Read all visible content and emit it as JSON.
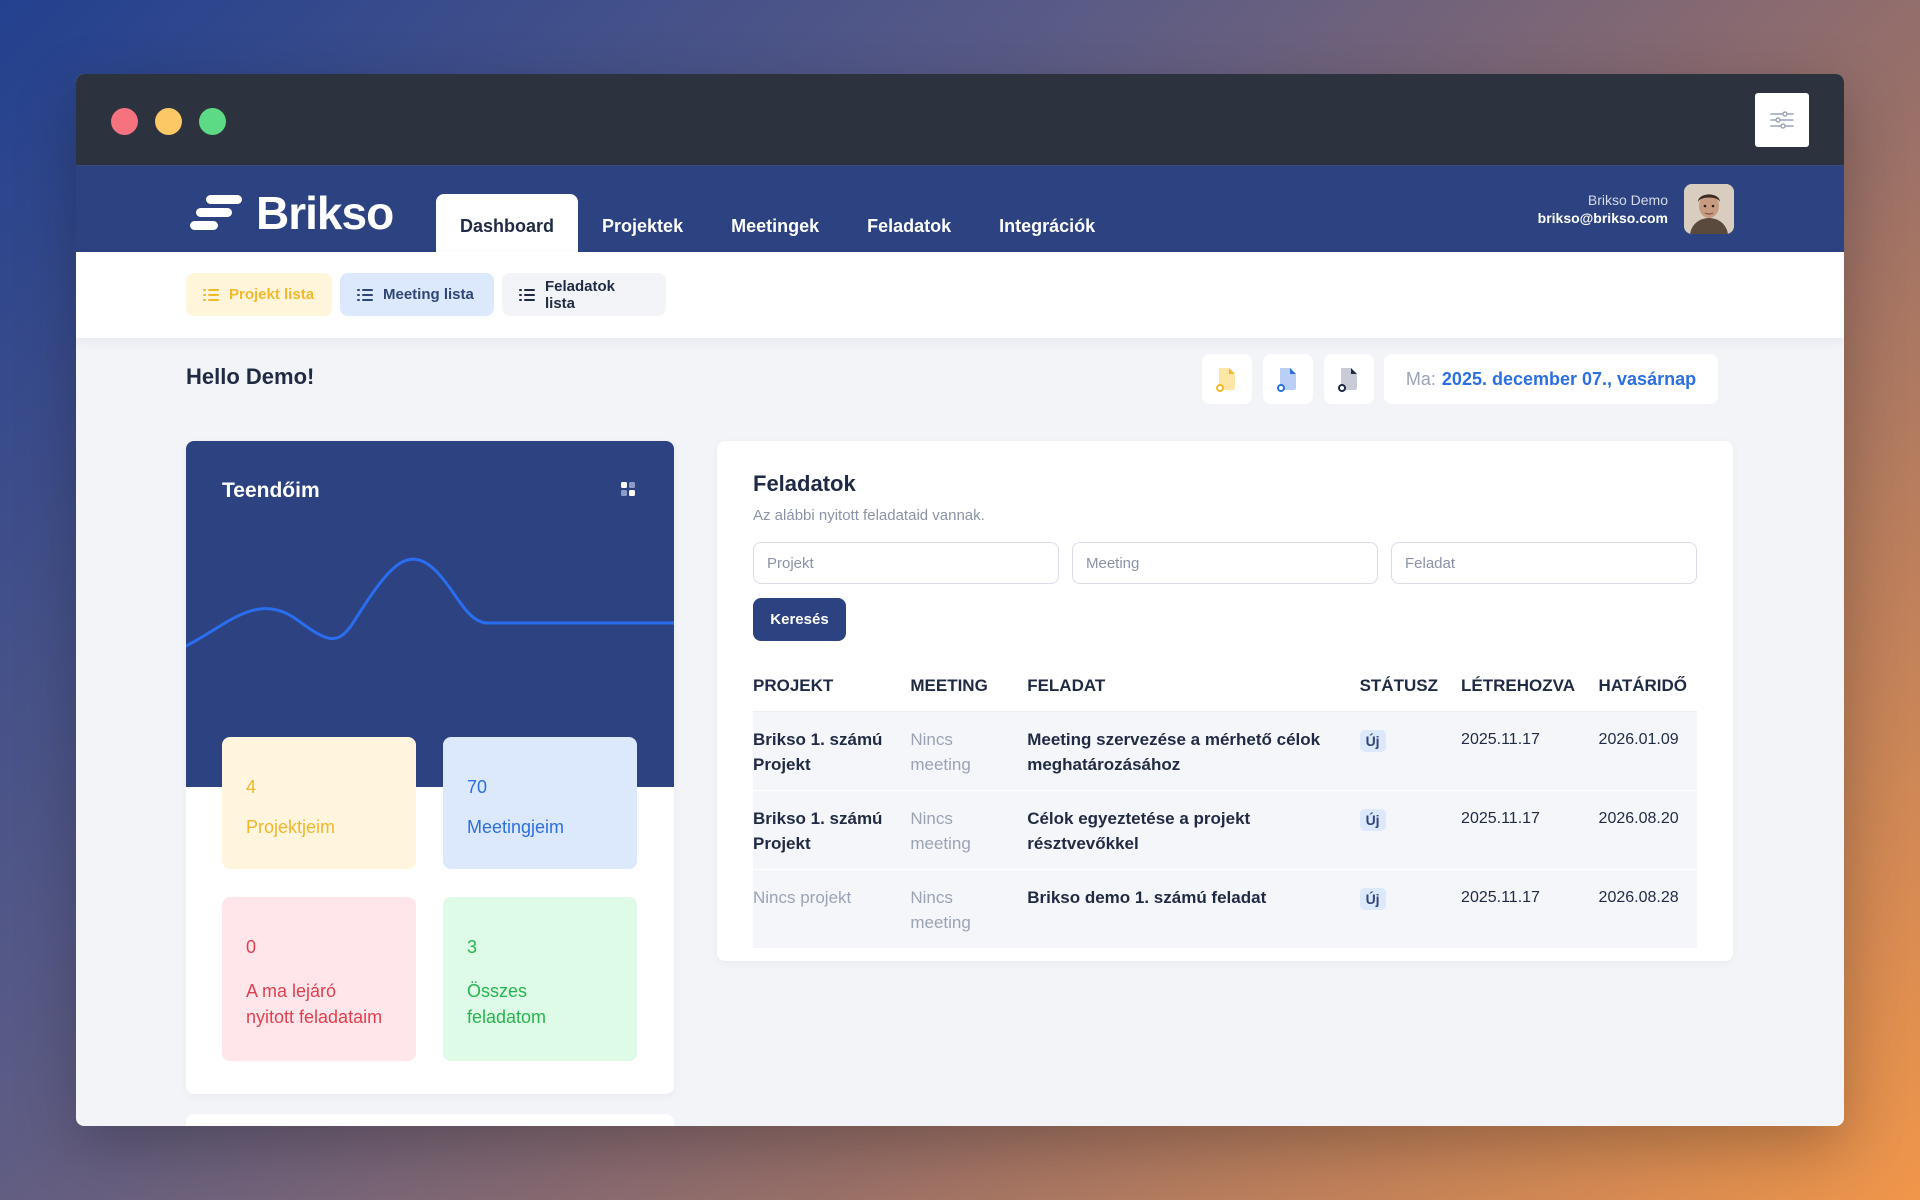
{
  "colors": {
    "navbar": "#2c4281",
    "accent_blue": "#2b6fe0",
    "yellow": "#f2b92d",
    "red": "#e23f4e",
    "green": "#27b44f"
  },
  "window": {
    "controls": [
      "close",
      "minimize",
      "maximize"
    ],
    "settings_icon": "sliders-icon"
  },
  "brand": {
    "name": "Brikso"
  },
  "nav": {
    "tabs": [
      {
        "label": "Dashboard",
        "active": true
      },
      {
        "label": "Projektek"
      },
      {
        "label": "Meetingek"
      },
      {
        "label": "Feladatok"
      },
      {
        "label": "Integrációk"
      }
    ]
  },
  "user": {
    "name": "Brikso Demo",
    "email": "brikso@brikso.com"
  },
  "subnav": {
    "projects": "Projekt lista",
    "meetings": "Meeting lista",
    "tasks": "Feladatok lista"
  },
  "greeting": "Hello Demo!",
  "quick_icons": [
    "project-file-icon",
    "meeting-file-icon",
    "task-file-icon"
  ],
  "date": {
    "label": "Ma:",
    "value": "2025. december 07., vasárnap"
  },
  "todos": {
    "title": "Teendőim",
    "stats": [
      {
        "value": "4",
        "label": "Projektjeim"
      },
      {
        "value": "70",
        "label": "Meetingjeim"
      },
      {
        "value": "0",
        "label": "A ma lejáró nyitott feladataim"
      },
      {
        "value": "3",
        "label": "Összes feladatom"
      }
    ]
  },
  "tasks_panel": {
    "title": "Feladatok",
    "subtitle": "Az alábbi nyitott feladataid vannak.",
    "filters": {
      "project_placeholder": "Projekt",
      "meeting_placeholder": "Meeting",
      "task_placeholder": "Feladat"
    },
    "search_label": "Keresés",
    "columns": [
      "PROJEKT",
      "MEETING",
      "FELADAT",
      "STÁTUSZ",
      "LÉTREHOZVA",
      "HATÁRIDŐ"
    ],
    "rows": [
      {
        "project": "Brikso 1. számú Projekt",
        "meeting": "Nincs meeting",
        "task": "Meeting szervezése a mérhető célok meghatározásához",
        "status": "Új",
        "created": "2025.11.17",
        "due": "2026.01.09"
      },
      {
        "project": "Brikso 1. számú Projekt",
        "meeting": "Nincs meeting",
        "task": "Célok egyeztetése a projekt résztvevőkkel",
        "status": "Új",
        "created": "2025.11.17",
        "due": "2026.08.20"
      },
      {
        "project": "Nincs projekt",
        "meeting": "Nincs meeting",
        "task": "Brikso demo 1. számú feladat",
        "status": "Új",
        "created": "2025.11.17",
        "due": "2026.08.28"
      }
    ]
  }
}
